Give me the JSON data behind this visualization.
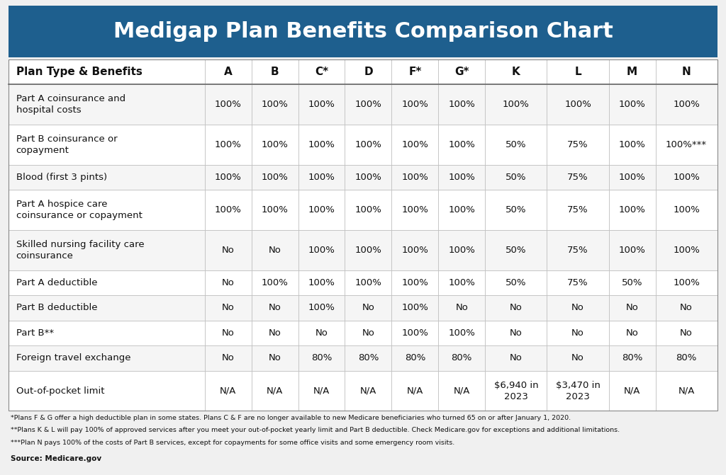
{
  "title": "Medigap Plan Benefits Comparison Chart",
  "title_bg_color": "#1e5f8e",
  "title_text_color": "#ffffff",
  "header_row": [
    "Plan Type & Benefits",
    "A",
    "B",
    "C*",
    "D",
    "F*",
    "G*",
    "K",
    "L",
    "M",
    "N"
  ],
  "rows": [
    [
      "Part A coinsurance and\nhospital costs",
      "100%",
      "100%",
      "100%",
      "100%",
      "100%",
      "100%",
      "100%",
      "100%",
      "100%",
      "100%"
    ],
    [
      "Part B coinsurance or\ncopayment",
      "100%",
      "100%",
      "100%",
      "100%",
      "100%",
      "100%",
      "50%",
      "75%",
      "100%",
      "100%***"
    ],
    [
      "Blood (first 3 pints)",
      "100%",
      "100%",
      "100%",
      "100%",
      "100%",
      "100%",
      "50%",
      "75%",
      "100%",
      "100%"
    ],
    [
      "Part A hospice care\ncoinsurance or copayment",
      "100%",
      "100%",
      "100%",
      "100%",
      "100%",
      "100%",
      "50%",
      "75%",
      "100%",
      "100%"
    ],
    [
      "Skilled nursing facility care\ncoinsurance",
      "No",
      "No",
      "100%",
      "100%",
      "100%",
      "100%",
      "50%",
      "75%",
      "100%",
      "100%"
    ],
    [
      "Part A deductible",
      "No",
      "100%",
      "100%",
      "100%",
      "100%",
      "100%",
      "50%",
      "75%",
      "50%",
      "100%"
    ],
    [
      "Part B deductible",
      "No",
      "No",
      "100%",
      "No",
      "100%",
      "No",
      "No",
      "No",
      "No",
      "No"
    ],
    [
      "Part B**",
      "No",
      "No",
      "No",
      "No",
      "100%",
      "100%",
      "No",
      "No",
      "No",
      "No"
    ],
    [
      "Foreign travel exchange",
      "No",
      "No",
      "80%",
      "80%",
      "80%",
      "80%",
      "No",
      "No",
      "80%",
      "80%"
    ],
    [
      "Out-of-pocket limit",
      "N/A",
      "N/A",
      "N/A",
      "N/A",
      "N/A",
      "N/A",
      "$6,940 in\n2023",
      "$3,470 in\n2023",
      "N/A",
      "N/A"
    ]
  ],
  "footnotes": [
    "*Plans F & G offer a high deductible plan in some states. Plans C & F are no longer available to new Medicare beneficiaries who turned 65 on or after January 1, 2020.",
    "**Plans K & L will pay 100% of approved services after you meet your out-of-pocket yearly limit and Part B deductible. Check Medicare.gov for exceptions and additional limitations.",
    "***Plan N pays 100% of the costs of Part B services, except for copayments for some office visits and some emergency room visits."
  ],
  "source": "Source: Medicare.gov",
  "bg_color": "#f0f0f0",
  "table_bg_color": "#ffffff",
  "header_row_bg": "#ffffff",
  "odd_row_bg": "#f5f5f5",
  "even_row_bg": "#ffffff",
  "grid_color": "#bbbbbb",
  "text_color": "#111111",
  "col_widths": [
    2.6,
    0.62,
    0.62,
    0.62,
    0.62,
    0.62,
    0.62,
    0.82,
    0.82,
    0.62,
    0.82
  ],
  "row_heights_rel": [
    1.0,
    1.6,
    1.6,
    1.0,
    1.6,
    1.6,
    1.0,
    1.0,
    1.0,
    1.0,
    1.6
  ],
  "title_fontsize": 22,
  "header_fontsize": 11,
  "cell_fontsize": 9.5,
  "footnote_fontsize": 6.8,
  "source_fontsize": 7.5
}
